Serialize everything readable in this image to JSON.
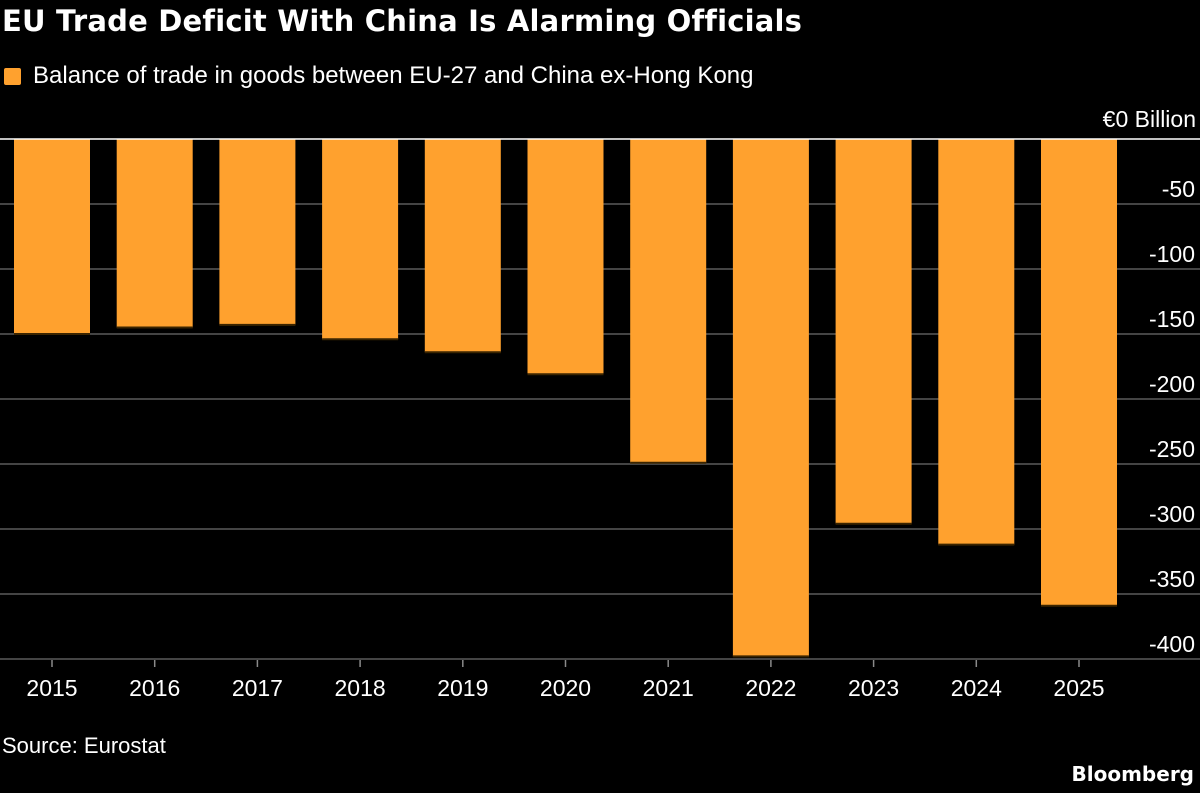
{
  "chart_data": {
    "type": "bar",
    "title": "EU Trade Deficit With China Is Alarming Officials",
    "legend": [
      {
        "name": "Balance of trade in goods between EU-27 and China ex-Hong Kong",
        "color": "#ffa12e"
      }
    ],
    "unit_label": "€0 Billion",
    "categories": [
      "2015",
      "2016",
      "2017",
      "2018",
      "2019",
      "2020",
      "2021",
      "2022",
      "2023",
      "2024",
      "2025"
    ],
    "series": [
      {
        "name": "Balance of trade in goods between EU-27 and China ex-Hong Kong",
        "values": [
          -150,
          -145,
          -143,
          -154,
          -164,
          -181,
          -249,
          -398,
          -296,
          -312,
          -359
        ]
      }
    ],
    "yticks": [
      "-50",
      "-100",
      "-150",
      "-200",
      "-250",
      "-300",
      "-350",
      "-400"
    ],
    "ytick_values": [
      -50,
      -100,
      -150,
      -200,
      -250,
      -300,
      -350,
      -400
    ],
    "ylim": [
      -400,
      0
    ],
    "grid": true,
    "legend_position": "top-left",
    "bar_color": "#ffa12e",
    "zero_line_color": "#ffffff",
    "grid_color": "#5a5a5a"
  },
  "footer": {
    "source": "Source: Eurostat",
    "brand": "Bloomberg"
  }
}
